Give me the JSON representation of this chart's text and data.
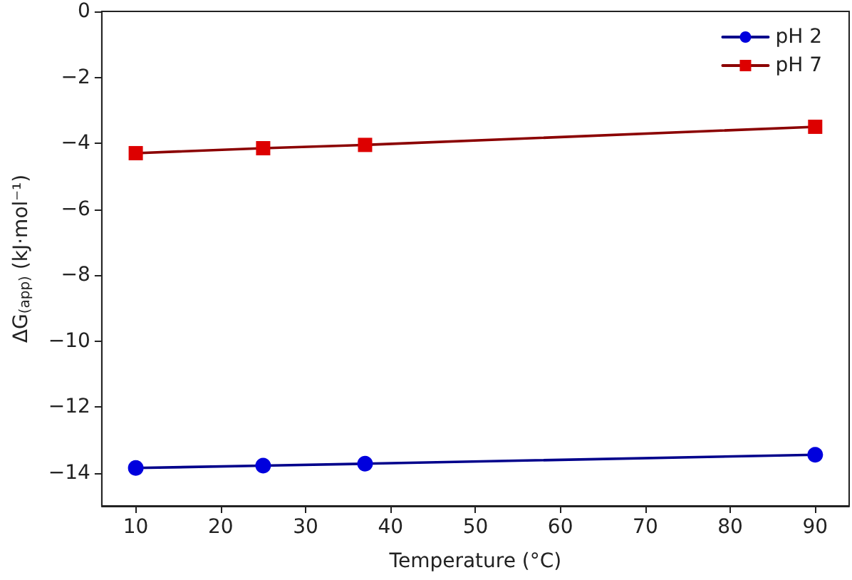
{
  "chart_data": {
    "type": "line",
    "xlabel": "Temperature (°C)",
    "ylabel": "ΔG$_{(app)}$ (kJ·mol⁻¹)",
    "x": [
      10,
      25,
      37,
      90
    ],
    "series": [
      {
        "name": "pH 2",
        "color": "#0000dd",
        "marker": "circle",
        "values": [
          -13.85,
          -13.78,
          -13.72,
          -13.45
        ]
      },
      {
        "name": "pH 7",
        "color": "#dd0000",
        "marker": "square",
        "values": [
          -4.3,
          -4.15,
          -4.05,
          -3.5
        ]
      }
    ],
    "xlim": [
      6,
      94
    ],
    "xticks": [
      10,
      20,
      30,
      40,
      50,
      60,
      70,
      80,
      90
    ],
    "ylim": [
      -15,
      0
    ],
    "yticks": [
      -14,
      -12,
      -10,
      -8,
      -6,
      -4,
      -2,
      0
    ],
    "grid": false,
    "legend": "top right",
    "line_style": "solid"
  }
}
